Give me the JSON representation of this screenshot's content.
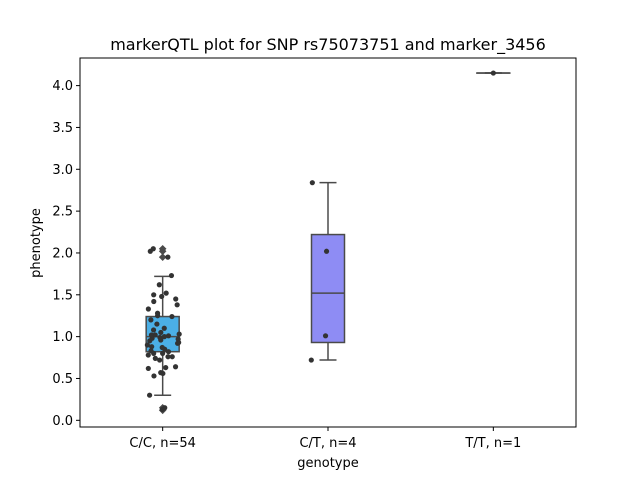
{
  "chart_data": {
    "type": "box",
    "title": "markerQTL plot for SNP rs75073751 and marker_3456",
    "xlabel": "genotype",
    "ylabel": "phenotype",
    "ylim": [
      -0.08,
      4.33
    ],
    "yticks": [
      "0.0",
      "0.5",
      "1.0",
      "1.5",
      "2.0",
      "2.5",
      "3.0",
      "3.5",
      "4.0"
    ],
    "categories": [
      "C/C, n=54",
      "C/T, n=4",
      "T/T, n=1"
    ],
    "colors": [
      "#4bafe6",
      "#8e8cf4",
      "#c77ed8"
    ],
    "boxes": [
      {
        "q1": 0.82,
        "median": 1.0,
        "q3": 1.24,
        "whisker_low": 0.3,
        "whisker_high": 1.72,
        "outliers": [
          0.12,
          0.15,
          1.95,
          2.02,
          2.05
        ]
      },
      {
        "q1": 0.93,
        "median": 1.52,
        "q3": 2.22,
        "whisker_low": 0.72,
        "whisker_high": 2.84,
        "outliers": []
      },
      {
        "q1": 4.15,
        "median": 4.15,
        "q3": 4.15,
        "whisker_low": 4.15,
        "whisker_high": 4.15,
        "outliers": []
      }
    ],
    "points": [
      [
        0.13,
        0.15,
        0.3,
        0.53,
        0.57,
        0.56,
        0.62,
        0.64,
        0.63,
        0.72,
        0.74,
        0.76,
        0.76,
        0.78,
        0.8,
        0.8,
        0.82,
        0.83,
        0.85,
        0.87,
        0.88,
        0.9,
        0.92,
        0.93,
        0.95,
        0.96,
        0.97,
        0.98,
        0.99,
        1.0,
        1.01,
        1.02,
        1.02,
        1.03,
        1.05,
        1.08,
        1.1,
        1.15,
        1.2,
        1.24,
        1.25,
        1.28,
        1.33,
        1.38,
        1.42,
        1.45,
        1.48,
        1.5,
        1.52,
        1.62,
        1.73,
        1.95,
        2.02,
        2.05
      ],
      [
        0.72,
        1.01,
        2.02,
        2.84
      ],
      [
        4.15
      ]
    ]
  }
}
